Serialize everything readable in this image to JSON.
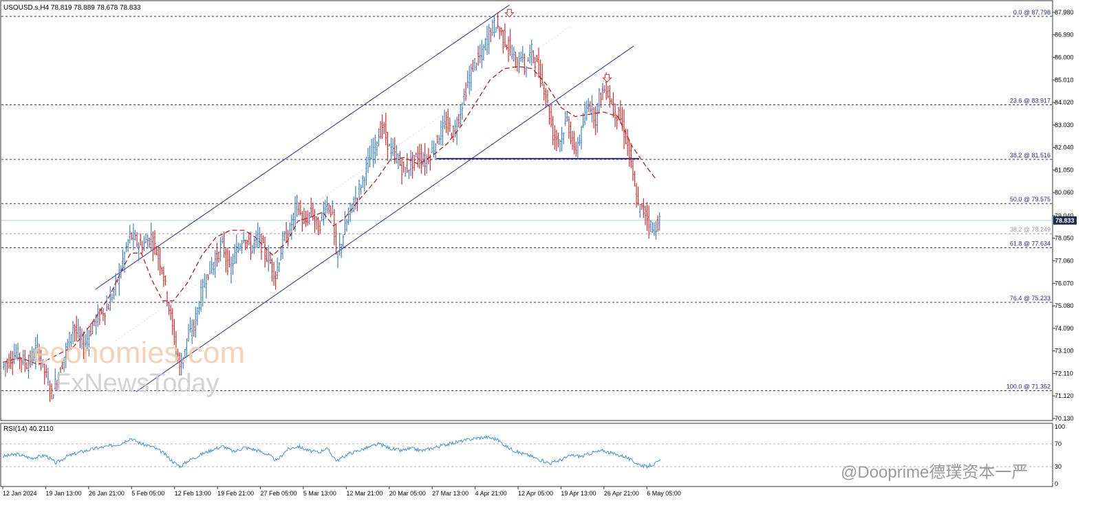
{
  "header": {
    "symbol_info": "USOUSD.s,H4  78.819 78.889 78.678 78.833"
  },
  "watermark": {
    "line1": "economies.com",
    "line2": "FxNewsToday",
    "social": "@Dooprime德璞资本一严"
  },
  "colors": {
    "bull_candle": "#3d7fc4",
    "bear_candle": "#d62a2a",
    "moving_average": "#b21e1e",
    "channel": "#2b2b8f",
    "fib_line": "#2b2b8f",
    "rsi_line": "#3d8fdc",
    "current_price_tag": "#1f2b4d"
  },
  "chart_data": [
    {
      "type": "candlestick",
      "name": "price",
      "y_range": [
        70.1,
        88.4
      ],
      "y_ticks": [
        "87.980",
        "86.990",
        "86.000",
        "85.010",
        "84.020",
        "83.030",
        "82.040",
        "81.050",
        "80.060",
        "79.040",
        "78.050",
        "77.060",
        "76.070",
        "75.080",
        "74.090",
        "73.100",
        "72.110",
        "71.120",
        "70.130"
      ],
      "x_labels": [
        "12 Jan 2024",
        "19 Jan 13:00",
        "26 Jan 21:00",
        "5 Feb 05:00",
        "12 Feb 13:00",
        "19 Feb 21:00",
        "27 Feb 05:00",
        "5 Mar 13:00",
        "12 Mar 21:00",
        "20 Mar 05:00",
        "27 Mar 13:00",
        "4 Apr 21:00",
        "12 Apr 05:00",
        "19 Apr 13:00",
        "26 Apr 21:00",
        "6 May 05:00"
      ],
      "current_price": "78.833",
      "fib_levels": [
        {
          "label": "0.0 @ 87.798",
          "value": 87.798
        },
        {
          "label": "23.6 @ 83.917",
          "value": 83.917
        },
        {
          "label": "38.2 @ 81.516",
          "value": 81.516
        },
        {
          "label": "50.0 @ 79.575",
          "value": 79.575
        },
        {
          "label": "61.8 @ 77.634",
          "value": 77.634
        },
        {
          "label": "76.4 @ 75.233",
          "value": 75.233
        },
        {
          "label": "100.0 @ 71.352",
          "value": 71.352
        }
      ],
      "secondary_fib": {
        "label": "38.2 @ 78.249",
        "value": 78.249
      },
      "support_line": {
        "value": 81.55
      },
      "close_path": [
        [
          0,
          72.4
        ],
        [
          8,
          73.0
        ],
        [
          14,
          72.5
        ],
        [
          20,
          73.2
        ],
        [
          28,
          71.2
        ],
        [
          34,
          72.6
        ],
        [
          40,
          74.2
        ],
        [
          46,
          73.3
        ],
        [
          52,
          74.4
        ],
        [
          60,
          75.1
        ],
        [
          66,
          76.5
        ],
        [
          72,
          78.2
        ],
        [
          78,
          77.7
        ],
        [
          84,
          78.1
        ],
        [
          90,
          76.8
        ],
        [
          96,
          74.1
        ],
        [
          100,
          72.3
        ],
        [
          104,
          73.6
        ],
        [
          108,
          74.2
        ],
        [
          112,
          75.6
        ],
        [
          116,
          76.6
        ],
        [
          120,
          77.1
        ],
        [
          124,
          77.8
        ],
        [
          128,
          76.6
        ],
        [
          132,
          77.5
        ],
        [
          136,
          78.2
        ],
        [
          140,
          77.6
        ],
        [
          144,
          78.1
        ],
        [
          148,
          77.4
        ],
        [
          152,
          76.8
        ],
        [
          154,
          76.4
        ],
        [
          158,
          77.9
        ],
        [
          162,
          78.4
        ],
        [
          166,
          79.6
        ],
        [
          170,
          78.6
        ],
        [
          174,
          79.3
        ],
        [
          178,
          78.4
        ],
        [
          182,
          79.6
        ],
        [
          186,
          79.2
        ],
        [
          188,
          77.1
        ],
        [
          192,
          78.2
        ],
        [
          196,
          79.3
        ],
        [
          200,
          80.0
        ],
        [
          204,
          80.9
        ],
        [
          208,
          81.8
        ],
        [
          212,
          82.6
        ],
        [
          214,
          83.0
        ],
        [
          218,
          82.0
        ],
        [
          222,
          81.6
        ],
        [
          226,
          81.0
        ],
        [
          230,
          81.3
        ],
        [
          234,
          81.7
        ],
        [
          238,
          81.4
        ],
        [
          242,
          81.9
        ],
        [
          246,
          82.6
        ],
        [
          250,
          83.1
        ],
        [
          254,
          82.6
        ],
        [
          258,
          83.7
        ],
        [
          262,
          84.9
        ],
        [
          266,
          85.8
        ],
        [
          270,
          86.1
        ],
        [
          274,
          87.1
        ],
        [
          278,
          87.5
        ],
        [
          282,
          86.9
        ],
        [
          286,
          86.3
        ],
        [
          290,
          85.6
        ],
        [
          292,
          86.2
        ],
        [
          294,
          85.5
        ],
        [
          298,
          86.3
        ],
        [
          302,
          85.4
        ],
        [
          306,
          84.4
        ],
        [
          310,
          82.6
        ],
        [
          314,
          82.4
        ],
        [
          318,
          83.3
        ],
        [
          322,
          81.8
        ],
        [
          326,
          82.7
        ],
        [
          330,
          84.1
        ],
        [
          334,
          83.3
        ],
        [
          336,
          84.3
        ],
        [
          340,
          84.7
        ],
        [
          344,
          83.7
        ],
        [
          348,
          83.3
        ],
        [
          352,
          82.1
        ],
        [
          354,
          81.2
        ],
        [
          356,
          80.2
        ],
        [
          358,
          79.4
        ],
        [
          362,
          79.2
        ],
        [
          366,
          78.4
        ],
        [
          370,
          78.83
        ]
      ],
      "ma_path": [
        [
          0,
          72.6
        ],
        [
          10,
          72.8
        ],
        [
          20,
          72.5
        ],
        [
          30,
          72.9
        ],
        [
          40,
          73.3
        ],
        [
          50,
          74.3
        ],
        [
          60,
          75.5
        ],
        [
          66,
          76.5
        ],
        [
          72,
          77.4
        ],
        [
          78,
          77.4
        ],
        [
          84,
          76.2
        ],
        [
          90,
          75.3
        ],
        [
          96,
          75.3
        ],
        [
          104,
          76.1
        ],
        [
          112,
          77.3
        ],
        [
          120,
          78.1
        ],
        [
          128,
          78.4
        ],
        [
          136,
          78.4
        ],
        [
          142,
          78.1
        ],
        [
          148,
          77.6
        ],
        [
          152,
          77.3
        ],
        [
          160,
          77.9
        ],
        [
          166,
          78.8
        ],
        [
          174,
          79.0
        ],
        [
          180,
          79.2
        ],
        [
          186,
          78.6
        ],
        [
          192,
          78.9
        ],
        [
          200,
          79.7
        ],
        [
          210,
          80.6
        ],
        [
          218,
          81.5
        ],
        [
          226,
          81.6
        ],
        [
          234,
          81.3
        ],
        [
          242,
          81.7
        ],
        [
          250,
          82.2
        ],
        [
          258,
          83.0
        ],
        [
          266,
          84.0
        ],
        [
          274,
          85.0
        ],
        [
          282,
          85.5
        ],
        [
          290,
          85.6
        ],
        [
          298,
          85.5
        ],
        [
          306,
          84.8
        ],
        [
          314,
          83.8
        ],
        [
          322,
          83.4
        ],
        [
          330,
          83.5
        ],
        [
          338,
          83.6
        ],
        [
          346,
          83.4
        ],
        [
          354,
          82.1
        ],
        [
          362,
          81.2
        ],
        [
          368,
          80.6
        ]
      ],
      "channel_lines": [
        {
          "from": [
            52,
            75.8
          ],
          "to": [
            285,
            88.3
          ]
        },
        {
          "from": [
            75,
            71.3
          ],
          "to": [
            355,
            86.5
          ]
        }
      ],
      "arrows": [
        {
          "x": 285,
          "y": 87.93
        },
        {
          "x": 340,
          "y": 85.07
        }
      ]
    },
    {
      "type": "line",
      "name": "rsi",
      "label": "RSI(14) 40.2110",
      "y_range": [
        0,
        100
      ],
      "y_ticks": [
        "100",
        "70",
        "30",
        "0"
      ],
      "levels": [
        70,
        30
      ],
      "path": [
        [
          0,
          48
        ],
        [
          8,
          52
        ],
        [
          16,
          45
        ],
        [
          24,
          50
        ],
        [
          30,
          36
        ],
        [
          36,
          48
        ],
        [
          44,
          56
        ],
        [
          52,
          62
        ],
        [
          60,
          66
        ],
        [
          66,
          70
        ],
        [
          72,
          80
        ],
        [
          78,
          70
        ],
        [
          84,
          65
        ],
        [
          90,
          55
        ],
        [
          96,
          38
        ],
        [
          100,
          30
        ],
        [
          104,
          40
        ],
        [
          112,
          52
        ],
        [
          118,
          60
        ],
        [
          124,
          66
        ],
        [
          130,
          56
        ],
        [
          136,
          64
        ],
        [
          144,
          58
        ],
        [
          150,
          50
        ],
        [
          154,
          40
        ],
        [
          160,
          60
        ],
        [
          166,
          66
        ],
        [
          172,
          58
        ],
        [
          178,
          55
        ],
        [
          182,
          63
        ],
        [
          188,
          40
        ],
        [
          194,
          52
        ],
        [
          200,
          58
        ],
        [
          206,
          64
        ],
        [
          212,
          70
        ],
        [
          218,
          62
        ],
        [
          224,
          58
        ],
        [
          230,
          62
        ],
        [
          236,
          58
        ],
        [
          242,
          63
        ],
        [
          248,
          68
        ],
        [
          254,
          72
        ],
        [
          260,
          76
        ],
        [
          266,
          80
        ],
        [
          272,
          82
        ],
        [
          278,
          78
        ],
        [
          284,
          64
        ],
        [
          290,
          55
        ],
        [
          296,
          50
        ],
        [
          302,
          42
        ],
        [
          308,
          36
        ],
        [
          314,
          42
        ],
        [
          320,
          50
        ],
        [
          326,
          48
        ],
        [
          332,
          55
        ],
        [
          338,
          58
        ],
        [
          344,
          52
        ],
        [
          350,
          48
        ],
        [
          354,
          40
        ],
        [
          358,
          34
        ],
        [
          362,
          30
        ],
        [
          366,
          34
        ],
        [
          370,
          40
        ]
      ]
    }
  ]
}
